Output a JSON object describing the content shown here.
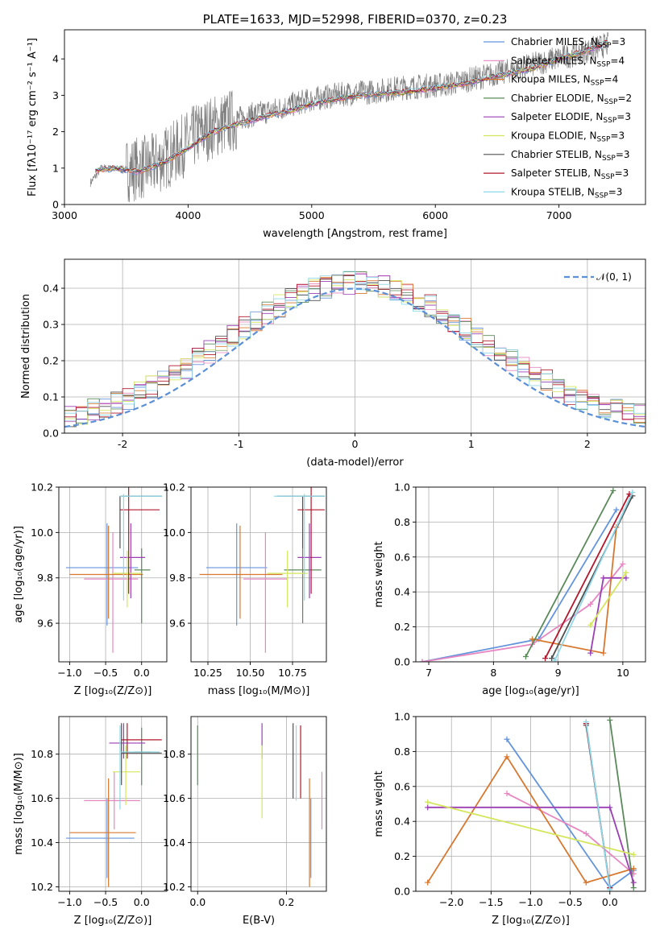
{
  "chart_data": [
    {
      "id": "spectrum",
      "type": "line",
      "title": "PLATE=1633, MJD=52998, FIBERID=0370, z=0.23",
      "xlabel": "wavelength [Angstrom, rest frame]",
      "ylabel": "Flux [fλ10⁻¹⁷ erg cm⁻² s⁻¹ A⁻¹]",
      "xlim": [
        3000,
        7700
      ],
      "ylim": [
        0,
        4.8
      ],
      "xticks": [
        3000,
        4000,
        5000,
        6000,
        7000
      ],
      "yticks": [
        0,
        1,
        2,
        3,
        4
      ],
      "legend_position": "top-right",
      "data_line": {
        "color": "#808080",
        "x": [
          3210,
          3300,
          3500,
          3700,
          3900,
          4100,
          4300,
          4500,
          4700,
          4900,
          5100,
          5300,
          5500,
          5700,
          5900,
          6100,
          6300,
          6500,
          6700,
          6900,
          7100,
          7300,
          7400
        ],
        "y": [
          0.6,
          1.0,
          0.95,
          1.05,
          1.45,
          2.0,
          2.25,
          2.45,
          2.6,
          2.8,
          2.95,
          3.05,
          3.1,
          3.2,
          3.25,
          3.3,
          3.45,
          3.6,
          3.75,
          3.95,
          4.1,
          4.3,
          4.4
        ]
      },
      "model_x": [
        3250,
        3400,
        3600,
        3800,
        4000,
        4200,
        4400,
        4600,
        4800,
        5000,
        5200,
        5400,
        5600,
        5800,
        6000,
        6200,
        6400,
        6600,
        6800,
        7000,
        7200,
        7400
      ],
      "model_y": [
        0.95,
        1.0,
        0.9,
        1.15,
        1.55,
        2.0,
        2.2,
        2.4,
        2.55,
        2.75,
        2.9,
        3.0,
        3.05,
        3.1,
        3.2,
        3.3,
        3.45,
        3.6,
        3.75,
        4.0,
        4.2,
        4.45
      ],
      "series": [
        {
          "name": "Chabrier MILES, N",
          "sub": "SSP",
          "suffix": "=3",
          "color": "#6495dc"
        },
        {
          "name": "Salpeter MILES, N",
          "sub": "SSP",
          "suffix": "=4",
          "color": "#e687c2"
        },
        {
          "name": "Kroupa MILES, N",
          "sub": "SSP",
          "suffix": "=4",
          "color": "#d8782f"
        },
        {
          "name": "Chabrier ELODIE, N",
          "sub": "SSP",
          "suffix": "=2",
          "color": "#5a8a5a"
        },
        {
          "name": "Salpeter ELODIE, N",
          "sub": "SSP",
          "suffix": "=3",
          "color": "#9b3fb5"
        },
        {
          "name": "Kroupa ELODIE, N",
          "sub": "SSP",
          "suffix": "=3",
          "color": "#d4e65c"
        },
        {
          "name": "Chabrier STELIB, N",
          "sub": "SSP",
          "suffix": "=3",
          "color": "#505050"
        },
        {
          "name": "Salpeter STELIB, N",
          "sub": "SSP",
          "suffix": "=3",
          "color": "#b2182b"
        },
        {
          "name": "Kroupa STELIB, N",
          "sub": "SSP",
          "suffix": "=3",
          "color": "#8fd8e8"
        }
      ]
    },
    {
      "id": "residuals",
      "type": "line",
      "title": "",
      "xlabel": "(data-model)/error",
      "ylabel": "Normed distribution",
      "xlim": [
        -2.5,
        2.5
      ],
      "ylim": [
        0,
        0.48
      ],
      "xticks": [
        -2,
        -1,
        0,
        1,
        2
      ],
      "yticks": [
        0.0,
        0.1,
        0.2,
        0.3,
        0.4
      ],
      "grid": true,
      "legend_position": "top-right",
      "legend": "𝒩(0, 1)",
      "gaussian": {
        "mean": 0,
        "sigma": 1,
        "color": "#5b8fd6",
        "style": "dashed"
      },
      "histogram_bins": [
        -2.5,
        2.5,
        0.1
      ],
      "histogram_note_series": [
        "Chabrier MILES",
        "Salpeter MILES",
        "Kroupa MILES",
        "Chabrier ELODIE",
        "Salpeter ELODIE",
        "Kroupa ELODIE",
        "Chabrier STELIB",
        "Salpeter STELIB",
        "Kroupa STELIB"
      ]
    },
    {
      "id": "age_vs_Z",
      "type": "scatter",
      "xlabel": "Z [log₁₀(Z/Z⊙)]",
      "ylabel": "age  [log₁₀(age/yr)]",
      "xlim": [
        -1.15,
        0.35
      ],
      "ylim": [
        9.43,
        10.2
      ],
      "xticks": [
        -1.0,
        -0.5,
        0.0
      ],
      "yticks": [
        9.6,
        9.8,
        10.0,
        10.2
      ],
      "grid": true,
      "points": [
        {
          "x": -0.48,
          "xlo": -1.05,
          "xhi": -0.05,
          "y": 9.845,
          "ylo": 9.59,
          "yhi": 10.04,
          "color": "#6495dc"
        },
        {
          "x": -0.4,
          "xlo": -0.8,
          "xhi": -0.05,
          "y": 9.795,
          "ylo": 9.47,
          "yhi": 10.0,
          "color": "#e687c2"
        },
        {
          "x": -0.46,
          "xlo": -1.0,
          "xhi": 0.02,
          "y": 9.815,
          "ylo": 9.62,
          "yhi": 10.03,
          "color": "#d8782f"
        },
        {
          "x": 0.0,
          "xlo": -0.1,
          "xhi": 0.12,
          "y": 9.835,
          "ylo": 9.6,
          "yhi": 9.93,
          "color": "#5a8a5a"
        },
        {
          "x": -0.15,
          "xlo": -0.3,
          "xhi": 0.05,
          "y": 9.89,
          "ylo": 9.71,
          "yhi": 10.04,
          "color": "#9b3fb5"
        },
        {
          "x": -0.2,
          "xlo": -0.4,
          "xhi": 0.0,
          "y": 9.82,
          "ylo": 9.67,
          "yhi": 9.92,
          "color": "#d4e65c"
        },
        {
          "x": -0.3,
          "xlo": -0.3,
          "xhi": 0.28,
          "y": 10.16,
          "ylo": 9.93,
          "yhi": 10.16,
          "color": "#505050"
        },
        {
          "x": -0.18,
          "xlo": -0.3,
          "xhi": 0.25,
          "y": 10.1,
          "ylo": 9.73,
          "yhi": 10.2,
          "color": "#b2182b"
        },
        {
          "x": -0.25,
          "xlo": -0.3,
          "xhi": 0.28,
          "y": 10.16,
          "ylo": 9.7,
          "yhi": 10.17,
          "color": "#8fd8e8"
        }
      ]
    },
    {
      "id": "age_vs_mass",
      "type": "scatter",
      "xlabel": "mass [log₁₀(M/M⊙)]",
      "ylabel": "",
      "xlim": [
        10.15,
        10.95
      ],
      "ylim": [
        9.43,
        10.2
      ],
      "xticks": [
        10.25,
        10.5,
        10.75
      ],
      "yticks": [
        9.6,
        9.8,
        10.0,
        10.2
      ],
      "grid": true,
      "points": [
        {
          "x": 10.42,
          "xlo": 10.24,
          "xhi": 10.6,
          "y": 9.845,
          "ylo": 9.59,
          "yhi": 10.04,
          "color": "#6495dc"
        },
        {
          "x": 10.59,
          "xlo": 10.46,
          "xhi": 10.72,
          "y": 9.795,
          "ylo": 9.47,
          "yhi": 10.0,
          "color": "#e687c2"
        },
        {
          "x": 10.44,
          "xlo": 10.2,
          "xhi": 10.69,
          "y": 9.815,
          "ylo": 9.62,
          "yhi": 10.03,
          "color": "#d8782f"
        },
        {
          "x": 10.81,
          "xlo": 10.7,
          "xhi": 10.92,
          "y": 9.835,
          "ylo": 9.6,
          "yhi": 9.93,
          "color": "#5a8a5a"
        },
        {
          "x": 10.85,
          "xlo": 10.78,
          "xhi": 10.92,
          "y": 9.89,
          "ylo": 9.71,
          "yhi": 10.04,
          "color": "#9b3fb5"
        },
        {
          "x": 10.72,
          "xlo": 10.6,
          "xhi": 10.84,
          "y": 9.82,
          "ylo": 9.67,
          "yhi": 9.92,
          "color": "#d4e65c"
        },
        {
          "x": 10.81,
          "xlo": 10.66,
          "xhi": 10.94,
          "y": 10.16,
          "ylo": 9.93,
          "yhi": 10.16,
          "color": "#505050"
        },
        {
          "x": 10.86,
          "xlo": 10.78,
          "xhi": 10.94,
          "y": 10.1,
          "ylo": 9.73,
          "yhi": 10.2,
          "color": "#b2182b"
        },
        {
          "x": 10.82,
          "xlo": 10.64,
          "xhi": 10.94,
          "y": 10.16,
          "ylo": 9.7,
          "yhi": 10.17,
          "color": "#8fd8e8"
        }
      ]
    },
    {
      "id": "mass_weight_vs_age",
      "type": "line",
      "xlabel": "age  [log₁₀(age/yr)]",
      "ylabel": "mass weight",
      "xlim": [
        6.8,
        10.35
      ],
      "ylim": [
        0,
        1
      ],
      "xticks": [
        7,
        8,
        9,
        10
      ],
      "yticks": [
        0.0,
        0.2,
        0.4,
        0.6,
        0.8,
        1.0
      ],
      "grid": true,
      "series": [
        {
          "color": "#6495dc",
          "x": [
            6.9,
            8.7,
            9.9
          ],
          "y": [
            0.0,
            0.13,
            0.87
          ]
        },
        {
          "color": "#e687c2",
          "x": [
            6.9,
            8.6,
            9.5,
            10.0
          ],
          "y": [
            0.0,
            0.1,
            0.33,
            0.56
          ]
        },
        {
          "color": "#d8782f",
          "x": [
            8.6,
            9.7,
            9.9
          ],
          "y": [
            0.13,
            0.05,
            0.77
          ]
        },
        {
          "color": "#5a8a5a",
          "x": [
            8.5,
            9.85
          ],
          "y": [
            0.03,
            0.98
          ]
        },
        {
          "color": "#9b3fb5",
          "x": [
            9.5,
            9.7,
            10.05
          ],
          "y": [
            0.05,
            0.48,
            0.48
          ]
        },
        {
          "color": "#d4e65c",
          "x": [
            9.5,
            10.05
          ],
          "y": [
            0.21,
            0.51
          ]
        },
        {
          "color": "#505050",
          "x": [
            8.9,
            10.15
          ],
          "y": [
            0.02,
            0.95
          ]
        },
        {
          "color": "#b2182b",
          "x": [
            8.8,
            10.1
          ],
          "y": [
            0.02,
            0.96
          ]
        },
        {
          "color": "#8fd8e8",
          "x": [
            8.95,
            10.15
          ],
          "y": [
            0.01,
            0.97
          ]
        }
      ]
    },
    {
      "id": "mass_vs_Z",
      "type": "scatter",
      "xlabel": "Z [log₁₀(Z/Z⊙)]",
      "ylabel": "mass [log₁₀(M/M⊙)]",
      "xlim": [
        -1.15,
        0.35
      ],
      "ylim": [
        10.18,
        10.97
      ],
      "xticks": [
        -1.0,
        -0.5,
        0.0
      ],
      "yticks": [
        10.2,
        10.4,
        10.6,
        10.8
      ],
      "grid": true,
      "points": [
        {
          "x": -0.48,
          "xlo": -1.05,
          "xhi": -0.1,
          "y": 10.42,
          "ylo": 10.24,
          "yhi": 10.6,
          "color": "#6495dc"
        },
        {
          "x": -0.38,
          "xlo": -0.8,
          "xhi": -0.02,
          "y": 10.59,
          "ylo": 10.46,
          "yhi": 10.72,
          "color": "#e687c2"
        },
        {
          "x": -0.46,
          "xlo": -1.0,
          "xhi": -0.08,
          "y": 10.445,
          "ylo": 10.2,
          "yhi": 10.69,
          "color": "#d8782f"
        },
        {
          "x": 0.0,
          "xlo": -0.1,
          "xhi": 0.12,
          "y": 10.81,
          "ylo": 10.66,
          "yhi": 10.92,
          "color": "#5a8a5a"
        },
        {
          "x": -0.25,
          "xlo": -0.45,
          "xhi": 0.05,
          "y": 10.85,
          "ylo": 10.78,
          "yhi": 10.94,
          "color": "#9b3fb5"
        },
        {
          "x": -0.22,
          "xlo": -0.4,
          "xhi": -0.02,
          "y": 10.72,
          "ylo": 10.57,
          "yhi": 10.84,
          "color": "#d4e65c"
        },
        {
          "x": -0.28,
          "xlo": -0.28,
          "xhi": 0.28,
          "y": 10.805,
          "ylo": 10.66,
          "yhi": 10.94,
          "color": "#505050"
        },
        {
          "x": -0.2,
          "xlo": -0.28,
          "xhi": 0.28,
          "y": 10.865,
          "ylo": 10.78,
          "yhi": 10.94,
          "color": "#b2182b"
        },
        {
          "x": -0.3,
          "xlo": -0.3,
          "xhi": 0.25,
          "y": 10.81,
          "ylo": 10.55,
          "yhi": 10.93,
          "color": "#8fd8e8"
        }
      ]
    },
    {
      "id": "mass_vs_EBV",
      "type": "scatter",
      "xlabel": "E(B-V)",
      "ylabel": "",
      "xlim": [
        -0.015,
        0.29
      ],
      "ylim": [
        10.18,
        10.97
      ],
      "xticks": [
        0.0,
        0.2
      ],
      "yticks": [
        10.2,
        10.4,
        10.6,
        10.8
      ],
      "grid": true,
      "points": [
        {
          "x": 0.255,
          "y": 10.42,
          "ylo": 10.24,
          "yhi": 10.6,
          "color": "#6495dc"
        },
        {
          "x": 0.28,
          "y": 10.59,
          "ylo": 10.46,
          "yhi": 10.72,
          "color": "#e687c2"
        },
        {
          "x": 0.252,
          "y": 10.445,
          "ylo": 10.2,
          "yhi": 10.69,
          "color": "#d8782f"
        },
        {
          "x": 0.0,
          "y": 10.81,
          "ylo": 10.66,
          "yhi": 10.93,
          "color": "#5a8a5a"
        },
        {
          "x": 0.145,
          "y": 10.85,
          "ylo": 10.78,
          "yhi": 10.94,
          "color": "#9b3fb5"
        },
        {
          "x": 0.145,
          "y": 10.72,
          "ylo": 10.51,
          "yhi": 10.84,
          "color": "#d4e65c"
        },
        {
          "x": 0.215,
          "y": 10.805,
          "ylo": 10.6,
          "yhi": 10.94,
          "color": "#505050"
        },
        {
          "x": 0.232,
          "y": 10.865,
          "ylo": 10.6,
          "yhi": 10.93,
          "color": "#b2182b"
        },
        {
          "x": 0.222,
          "y": 10.81,
          "ylo": 10.59,
          "yhi": 10.93,
          "color": "#8fd8e8"
        }
      ]
    },
    {
      "id": "mass_weight_vs_Z",
      "type": "line",
      "xlabel": "Z [log₁₀(Z/Z⊙)]",
      "ylabel": "mass weight",
      "xlim": [
        -2.45,
        0.45
      ],
      "ylim": [
        0,
        1
      ],
      "xticks": [
        -2.0,
        -1.5,
        -1.0,
        -0.5,
        0.0
      ],
      "yticks": [
        0.0,
        0.2,
        0.4,
        0.6,
        0.8,
        1.0
      ],
      "grid": true,
      "series": [
        {
          "color": "#6495dc",
          "x": [
            -1.3,
            0.0,
            0.3
          ],
          "y": [
            0.87,
            0.02,
            0.12
          ]
        },
        {
          "color": "#e687c2",
          "x": [
            -1.3,
            -0.3,
            0.3
          ],
          "y": [
            0.56,
            0.33,
            0.1
          ]
        },
        {
          "color": "#d8782f",
          "x": [
            -2.3,
            -1.3,
            -0.3,
            0.3
          ],
          "y": [
            0.05,
            0.77,
            0.05,
            0.13
          ]
        },
        {
          "color": "#5a8a5a",
          "x": [
            0.0,
            0.3
          ],
          "y": [
            0.98,
            0.02
          ]
        },
        {
          "color": "#9b3fb5",
          "x": [
            -2.3,
            0.0,
            0.3
          ],
          "y": [
            0.48,
            0.48,
            0.05
          ]
        },
        {
          "color": "#d4e65c",
          "x": [
            -2.3,
            0.3
          ],
          "y": [
            0.51,
            0.21
          ]
        },
        {
          "color": "#505050",
          "x": [
            -0.3,
            0.0
          ],
          "y": [
            0.95,
            0.02
          ]
        },
        {
          "color": "#b2182b",
          "x": [
            -0.3,
            0.0
          ],
          "y": [
            0.96,
            0.02
          ]
        },
        {
          "color": "#8fd8e8",
          "x": [
            -0.3,
            0.0
          ],
          "y": [
            0.97,
            0.01
          ]
        }
      ]
    }
  ]
}
